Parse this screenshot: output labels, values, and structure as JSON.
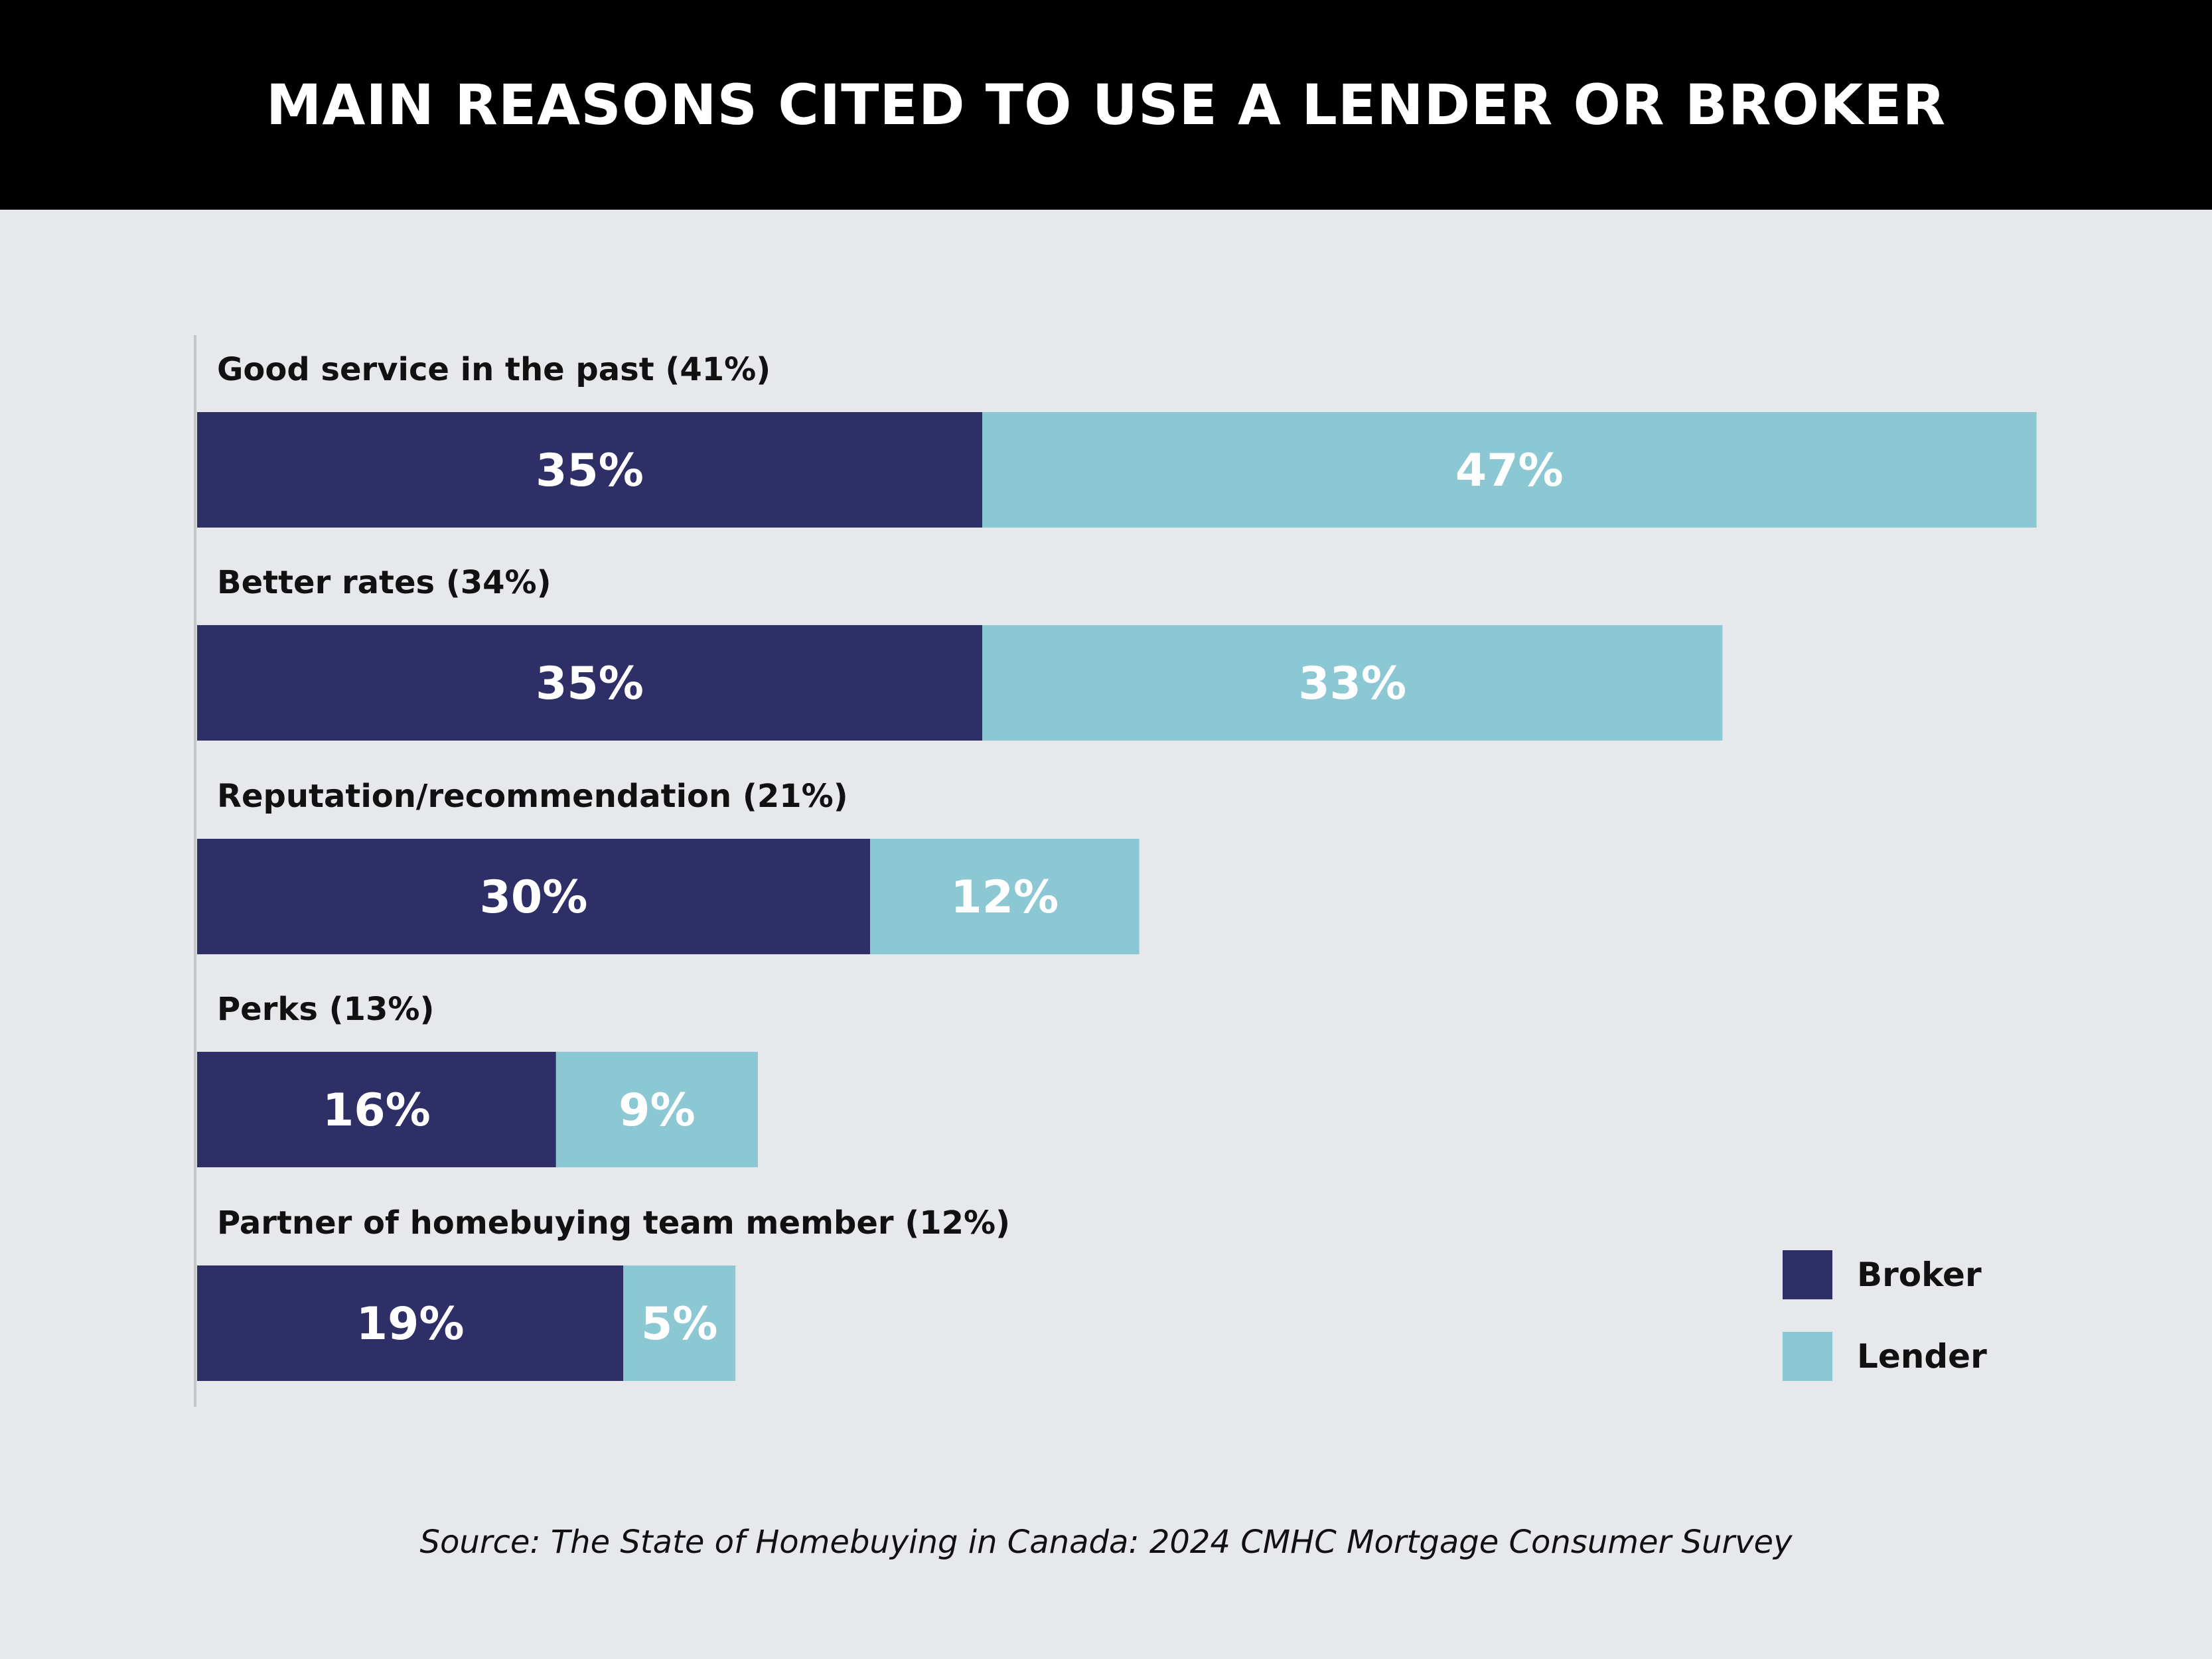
{
  "title": "MAIN REASONS CITED TO USE A LENDER OR BROKER",
  "source": "Source: The State of Homebuying in Canada: 2024 CMHC Mortgage Consumer Survey",
  "colors": {
    "broker": "#2d2f66",
    "lender": "#8cc7d4",
    "header_bg": "#000000",
    "background": "#e7e8ec"
  },
  "chart_data": {
    "type": "bar",
    "orientation": "horizontal",
    "stacked": true,
    "categories": [
      "Good service in the past (41%)",
      "Better rates (34%)",
      "Reputation/recommendation (21%)",
      "Perks (13%)",
      "Partner of homebuying team member (12%)"
    ],
    "series": [
      {
        "name": "Broker",
        "values": [
          35,
          35,
          30,
          16,
          19
        ],
        "labels": [
          "35%",
          "35%",
          "30%",
          "16%",
          "19%"
        ]
      },
      {
        "name": "Lender",
        "values": [
          47,
          33,
          12,
          9,
          5
        ],
        "labels": [
          "47%",
          "33%",
          "12%",
          "9%",
          "5%"
        ]
      }
    ],
    "legend_position": "bottom-right",
    "grid": false
  }
}
